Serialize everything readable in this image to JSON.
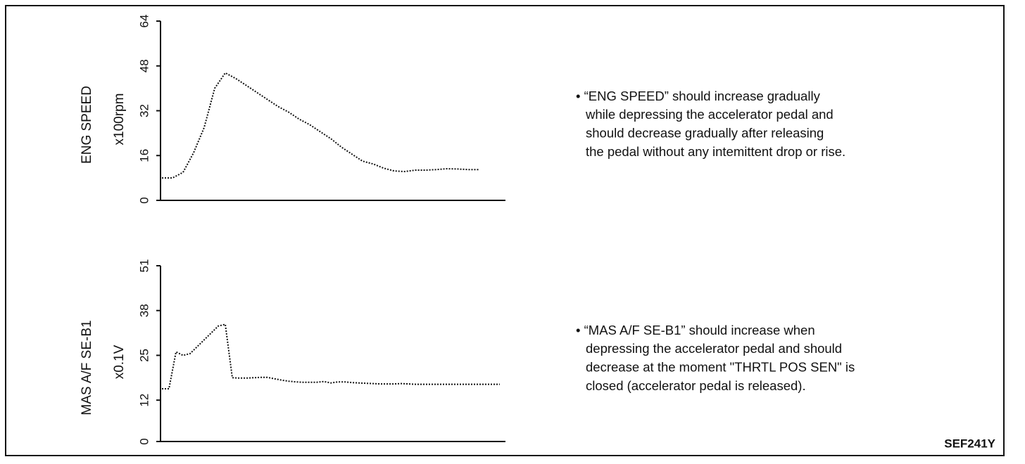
{
  "chart_data": [
    {
      "type": "line",
      "ylabel": "ENG SPEED",
      "unit": "x100rpm",
      "values": [
        8,
        8,
        10,
        17,
        26,
        40,
        45.5,
        43.5,
        41,
        38.5,
        36,
        33.5,
        31.5,
        29,
        27,
        24.5,
        22,
        19,
        16.5,
        14,
        13,
        11.5,
        10.5,
        10.3,
        10.8,
        10.8,
        11,
        11.3,
        11.2,
        11,
        11
      ],
      "ylim": [
        0,
        64
      ],
      "yticks": [
        0,
        16,
        32,
        48,
        64
      ],
      "color": "#111111",
      "note": [
        "• “ENG SPEED” should increase gradually",
        "while depressing the accelerator pedal and",
        "should decrease gradually after releasing",
        "the pedal without any intemittent drop or rise."
      ]
    },
    {
      "type": "line",
      "ylabel": "MAS A/F SE-B1",
      "unit": "x0.1V",
      "values": [
        15.3,
        15.3,
        26,
        25,
        25.5,
        27.5,
        29.5,
        31.5,
        33.5,
        34,
        18.5,
        18.4,
        18.4,
        18.5,
        18.6,
        18.6,
        18.2,
        17.8,
        17.5,
        17.3,
        17.2,
        17.2,
        17.2,
        17.4,
        17,
        17.3,
        17.3,
        17.1,
        17,
        16.9,
        16.8,
        16.7,
        16.7,
        16.7,
        16.8,
        16.7,
        16.6,
        16.6,
        16.6,
        16.6,
        16.6,
        16.6,
        16.6,
        16.6,
        16.6,
        16.6,
        16.6,
        16.6,
        16.6
      ],
      "ylim": [
        0,
        51
      ],
      "yticks": [
        0,
        12,
        25,
        38,
        51
      ],
      "color": "#111111",
      "note": [
        "• “MAS A/F SE-B1” should increase when",
        "depressing the accelerator pedal and  should",
        "decrease at the moment \"THRTL POS SEN\" is",
        "closed (accelerator pedal is released)."
      ]
    }
  ],
  "figure_id": "SEF241Y"
}
